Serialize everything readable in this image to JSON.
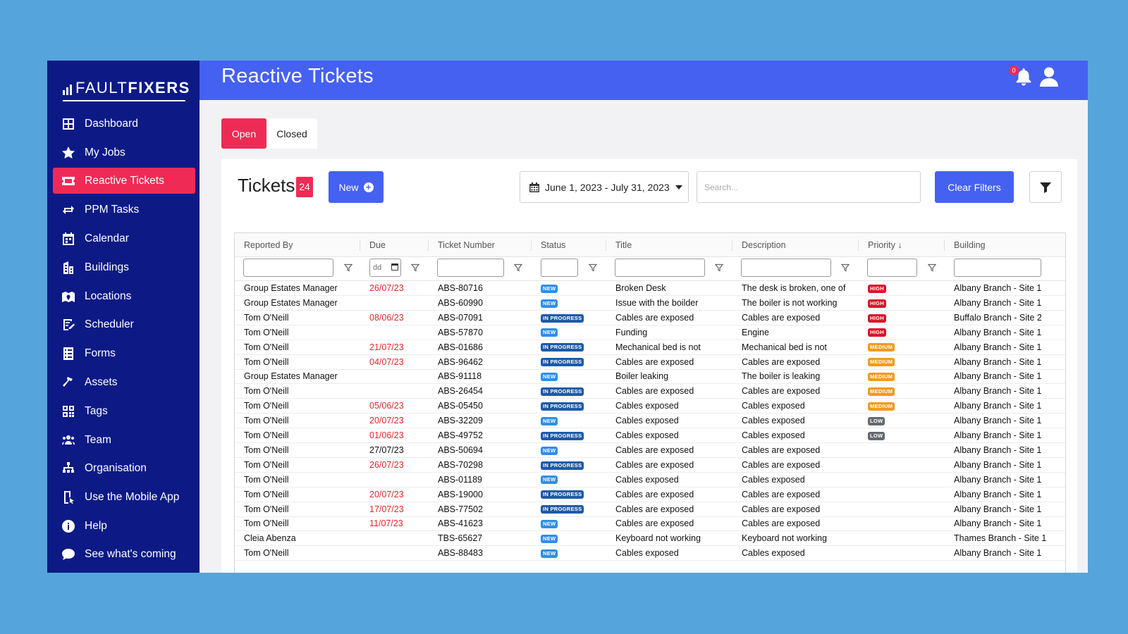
{
  "brand": {
    "part_a": "FAULT",
    "part_b": "FIXERS"
  },
  "header": {
    "title": "Reactive Tickets",
    "notification_count": "0"
  },
  "sidebar": {
    "items": [
      {
        "label": "Dashboard",
        "icon": "dashboard-icon"
      },
      {
        "label": "My Jobs",
        "icon": "star-icon"
      },
      {
        "label": "Reactive Tickets",
        "icon": "ticket-icon",
        "active": true
      },
      {
        "label": "PPM Tasks",
        "icon": "repeat-icon"
      },
      {
        "label": "Calendar",
        "icon": "calendar-icon"
      },
      {
        "label": "Buildings",
        "icon": "building-icon"
      },
      {
        "label": "Locations",
        "icon": "map-icon"
      },
      {
        "label": "Scheduler",
        "icon": "scheduler-icon"
      },
      {
        "label": "Forms",
        "icon": "form-icon"
      },
      {
        "label": "Assets",
        "icon": "hammer-icon"
      },
      {
        "label": "Tags",
        "icon": "qr-icon"
      },
      {
        "label": "Team",
        "icon": "team-icon"
      },
      {
        "label": "Organisation",
        "icon": "sitemap-icon"
      },
      {
        "label": "Use the Mobile App",
        "icon": "mobile-icon"
      },
      {
        "label": "Help",
        "icon": "info-icon"
      },
      {
        "label": "See what's coming",
        "icon": "comment-icon"
      }
    ]
  },
  "tabs": {
    "open": "Open",
    "closed": "Closed"
  },
  "toolbar": {
    "title": "Tickets",
    "count": "24",
    "new_label": "New",
    "date_range": "June 1, 2023 - July 31, 2023",
    "search_placeholder": "Search...",
    "clear_filters": "Clear Filters"
  },
  "table": {
    "columns": [
      "Reported By",
      "Due",
      "Ticket Number",
      "Status",
      "Title",
      "Description",
      "Priority ↓",
      "Building"
    ],
    "date_placeholder": "dd",
    "rows": [
      {
        "reported_by": "Group Estates Manager",
        "due": "26/07/23",
        "overdue": true,
        "ticket": "ABS-80716",
        "status": "NEW",
        "title": "Broken Desk",
        "description": "The desk is broken, one of",
        "priority": "HIGH",
        "building": "Albany Branch - Site 1"
      },
      {
        "reported_by": "Group Estates Manager",
        "due": "",
        "overdue": false,
        "ticket": "ABS-60990",
        "status": "NEW",
        "title": "Issue with the boilder",
        "description": "The boiler is not working",
        "priority": "HIGH",
        "building": "Albany Branch - Site 1"
      },
      {
        "reported_by": "Tom O'Neill",
        "due": "08/06/23",
        "overdue": true,
        "ticket": "ABS-07091",
        "status": "IN PROGRESS",
        "title": "Cables are exposed",
        "description": "Cables are exposed",
        "priority": "HIGH",
        "building": "Buffalo Branch - Site 2"
      },
      {
        "reported_by": "Tom O'Neill",
        "due": "",
        "overdue": false,
        "ticket": "ABS-57870",
        "status": "NEW",
        "title": "Funding",
        "description": "Engine",
        "priority": "HIGH",
        "building": "Albany Branch - Site 1"
      },
      {
        "reported_by": "Tom O'Neill",
        "due": "21/07/23",
        "overdue": true,
        "ticket": "ABS-01686",
        "status": "IN PROGRESS",
        "title": "Mechanical bed is not",
        "description": "Mechanical bed is not",
        "priority": "MEDIUM",
        "building": "Albany Branch - Site 1"
      },
      {
        "reported_by": "Tom O'Neill",
        "due": "04/07/23",
        "overdue": true,
        "ticket": "ABS-96462",
        "status": "IN PROGRESS",
        "title": "Cables are exposed",
        "description": "Cables are exposed",
        "priority": "MEDIUM",
        "building": "Albany Branch - Site 1"
      },
      {
        "reported_by": "Group Estates Manager",
        "due": "",
        "overdue": false,
        "ticket": "ABS-91118",
        "status": "NEW",
        "title": "Boiler leaking",
        "description": "The boiler is leaking",
        "priority": "MEDIUM",
        "building": "Albany Branch - Site 1"
      },
      {
        "reported_by": "Tom O'Neill",
        "due": "",
        "overdue": false,
        "ticket": "ABS-26454",
        "status": "IN PROGRESS",
        "title": "Cables are exposed",
        "description": "Cables are exposed",
        "priority": "MEDIUM",
        "building": "Albany Branch - Site 1"
      },
      {
        "reported_by": "Tom O'Neill",
        "due": "05/06/23",
        "overdue": true,
        "ticket": "ABS-05450",
        "status": "IN PROGRESS",
        "title": "Cables exposed",
        "description": "Cables exposed",
        "priority": "MEDIUM",
        "building": "Albany Branch - Site 1"
      },
      {
        "reported_by": "Tom O'Neill",
        "due": "20/07/23",
        "overdue": true,
        "ticket": "ABS-32209",
        "status": "NEW",
        "title": "Cables exposed",
        "description": "Cables exposed",
        "priority": "LOW",
        "building": "Albany Branch - Site 1"
      },
      {
        "reported_by": "Tom O'Neill",
        "due": "01/06/23",
        "overdue": true,
        "ticket": "ABS-49752",
        "status": "IN PROGRESS",
        "title": "Cables exposed",
        "description": "Cables exposed",
        "priority": "LOW",
        "building": "Albany Branch - Site 1"
      },
      {
        "reported_by": "Tom O'Neill",
        "due": "27/07/23",
        "overdue": false,
        "ticket": "ABS-50694",
        "status": "NEW",
        "title": "Cables are exposed",
        "description": "Cables are exposed",
        "priority": "",
        "building": "Albany Branch - Site 1"
      },
      {
        "reported_by": "Tom O'Neill",
        "due": "26/07/23",
        "overdue": true,
        "ticket": "ABS-70298",
        "status": "IN PROGRESS",
        "title": "Cables are exposed",
        "description": "Cables are exposed",
        "priority": "",
        "building": "Albany Branch - Site 1"
      },
      {
        "reported_by": "Tom O'Neill",
        "due": "",
        "overdue": false,
        "ticket": "ABS-01189",
        "status": "NEW",
        "title": "Cables exposed",
        "description": "Cables exposed",
        "priority": "",
        "building": "Albany Branch - Site 1"
      },
      {
        "reported_by": "Tom O'Neill",
        "due": "20/07/23",
        "overdue": true,
        "ticket": "ABS-19000",
        "status": "IN PROGRESS",
        "title": "Cables are exposed",
        "description": "Cables are exposed",
        "priority": "",
        "building": "Albany Branch - Site 1"
      },
      {
        "reported_by": "Tom O'Neill",
        "due": "17/07/23",
        "overdue": true,
        "ticket": "ABS-77502",
        "status": "IN PROGRESS",
        "title": "Cables are exposed",
        "description": "Cables are exposed",
        "priority": "",
        "building": "Albany Branch - Site 1"
      },
      {
        "reported_by": "Tom O'Neill",
        "due": "11/07/23",
        "overdue": true,
        "ticket": "ABS-41623",
        "status": "NEW",
        "title": "Cables are exposed",
        "description": "Cables are exposed",
        "priority": "",
        "building": "Albany Branch - Site 1"
      },
      {
        "reported_by": "Cleia Abenza",
        "due": "",
        "overdue": false,
        "ticket": "TBS-65627",
        "status": "NEW",
        "title": "Keyboard not working",
        "description": "Keyboard not working",
        "priority": "",
        "building": "Thames Branch - Site 1"
      },
      {
        "reported_by": "Tom O'Neill",
        "due": "",
        "overdue": false,
        "ticket": "ABS-88483",
        "status": "NEW",
        "title": "Cables exposed",
        "description": "Cables exposed",
        "priority": "",
        "building": "Albany Branch - Site 1"
      }
    ]
  },
  "colors": {
    "sidebar": "#0d1a86",
    "header": "#4561f1",
    "accent": "#ef2b55",
    "background": "#56a4dc"
  }
}
